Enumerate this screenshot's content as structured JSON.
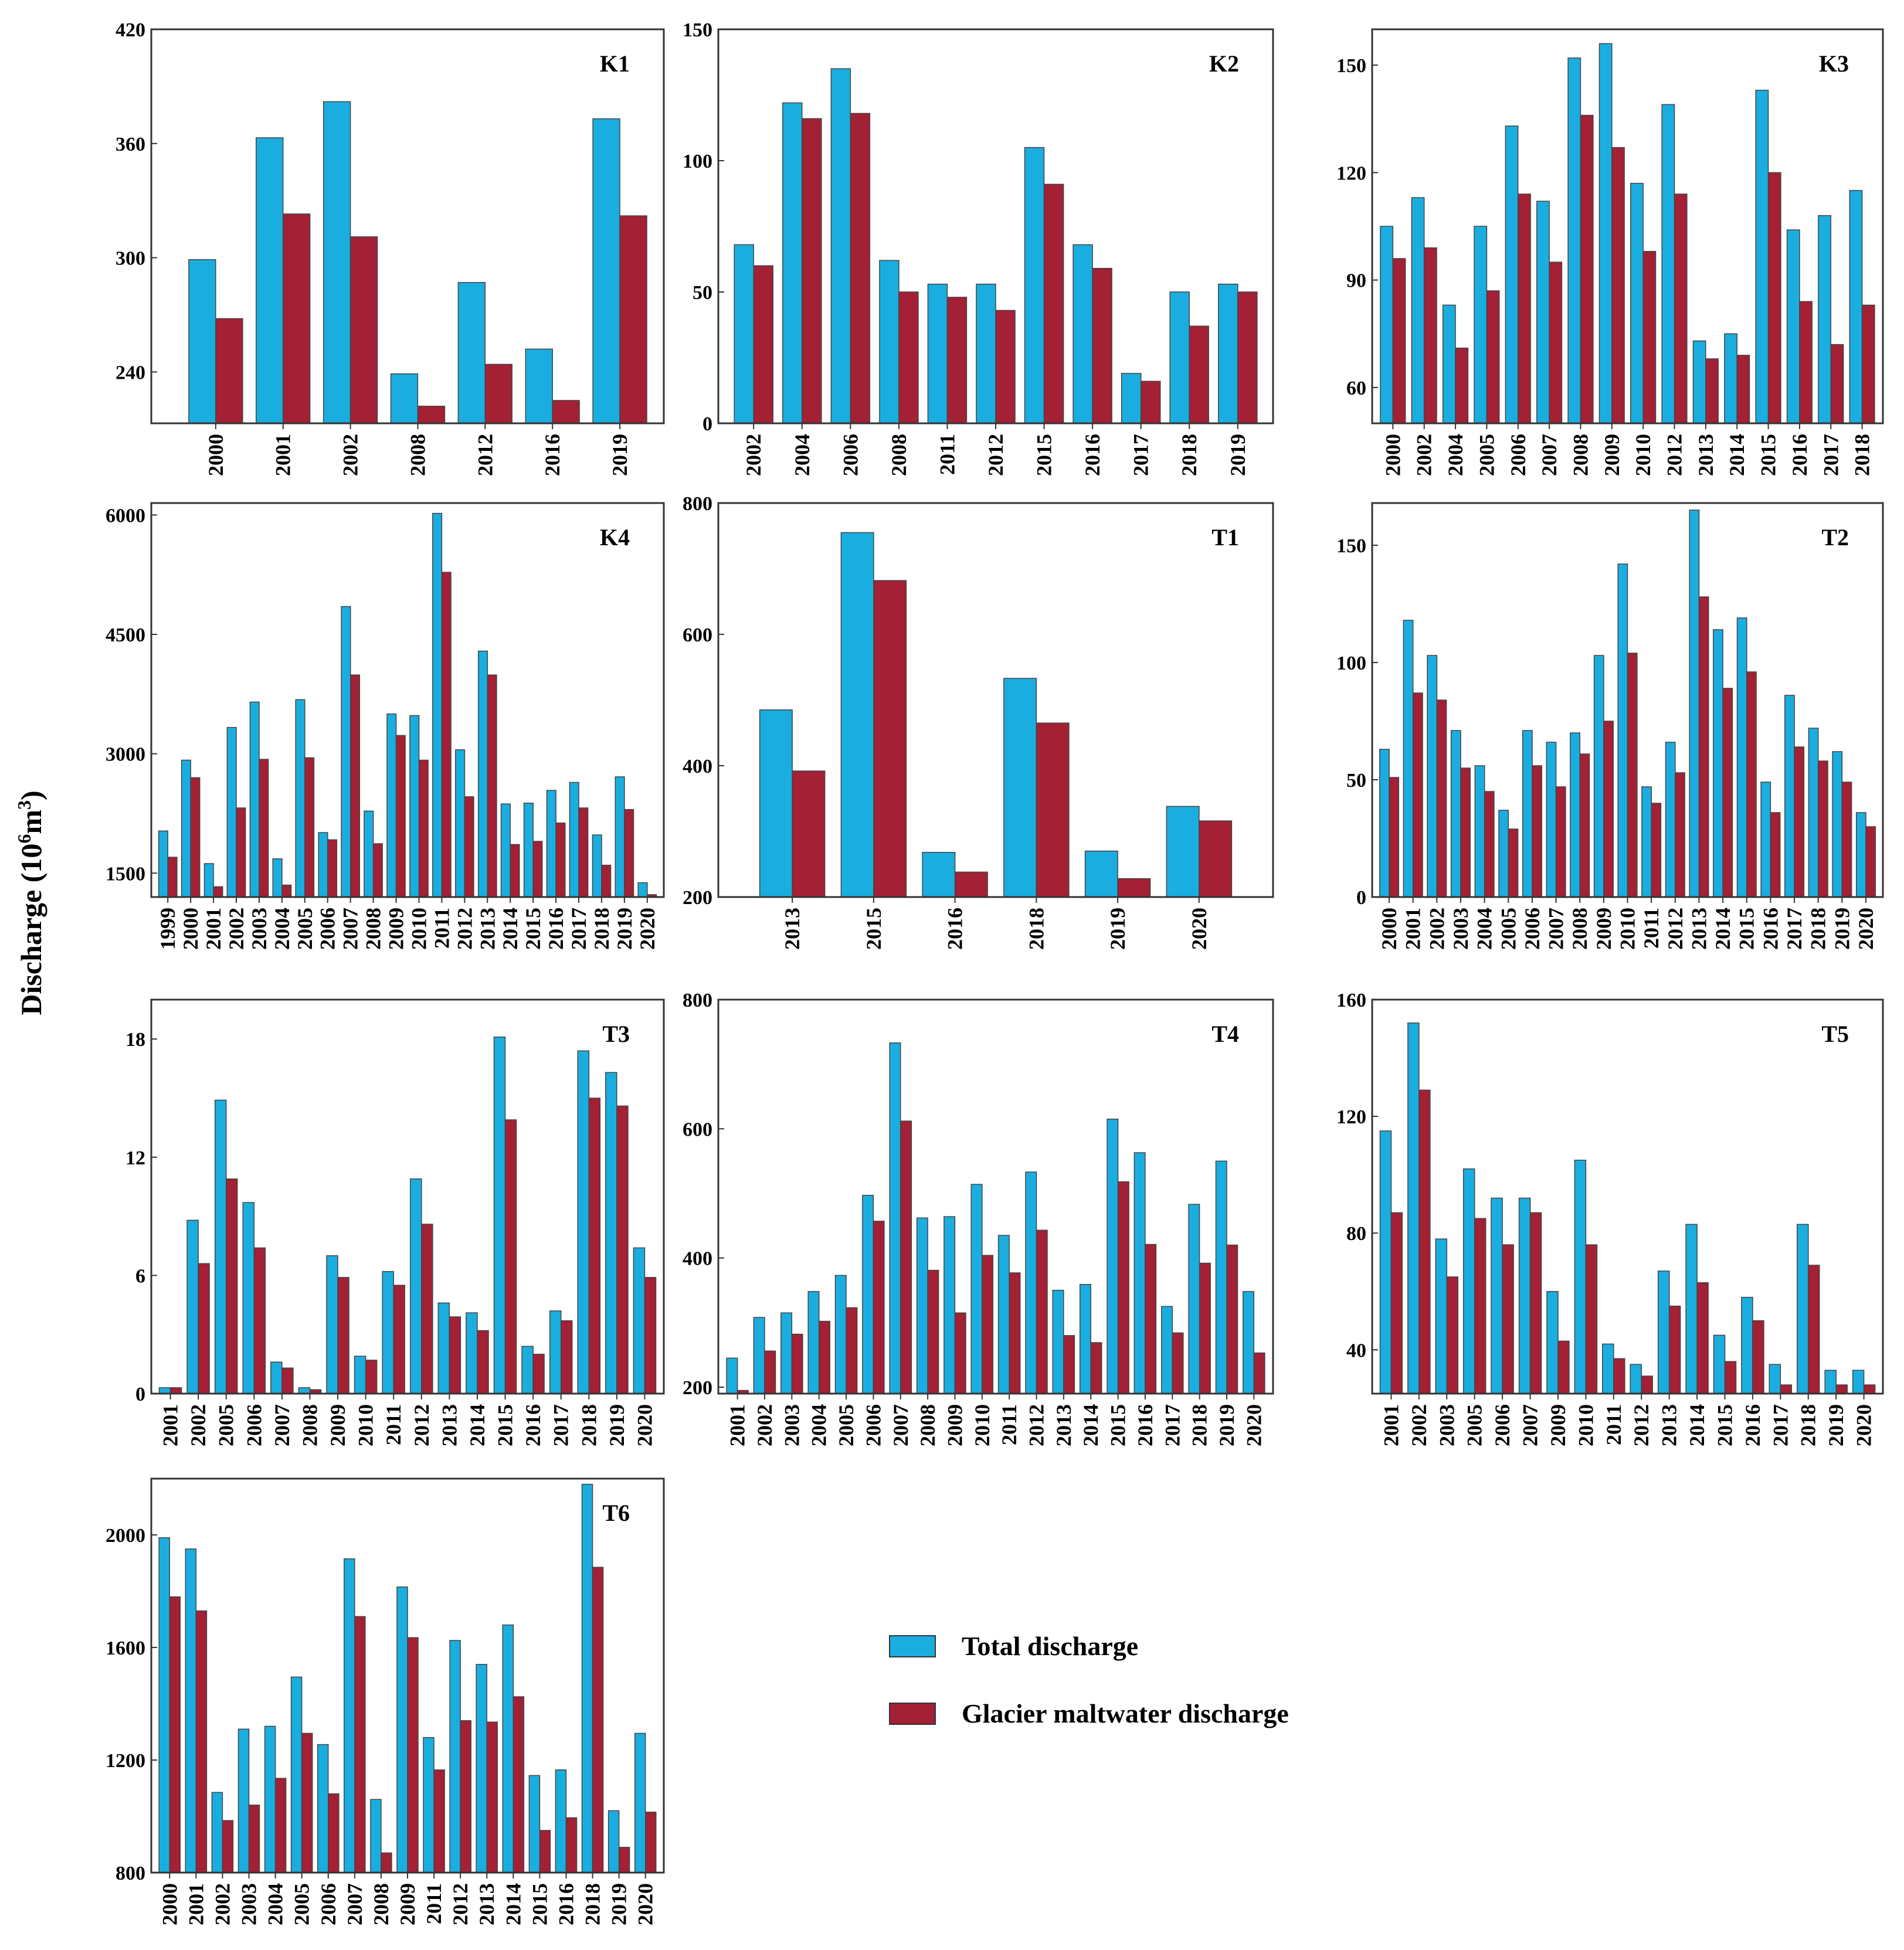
{
  "figure": {
    "ylabel": "Discharge (10",
    "ylabel_sup": "6",
    "ylabel_unit": "m",
    "ylabel_sup2": "3",
    "ylabel_end": ")"
  },
  "legend": {
    "items": [
      {
        "label": "Total discharge",
        "color": "#1aaee0"
      },
      {
        "label": "Glacier maltwater discharge",
        "color": "#a32035"
      }
    ]
  },
  "colors": {
    "total": "#1aaee0",
    "glacier": "#a32035"
  },
  "chart_data": [
    {
      "type": "bar",
      "title": "K1",
      "ylim": [
        213,
        420
      ],
      "yticks": [
        240,
        300,
        360,
        420
      ],
      "categories": [
        "2000",
        "2001",
        "2002",
        "2008",
        "2012",
        "2016",
        "2019"
      ],
      "series": [
        {
          "name": "Total discharge",
          "values": [
            299,
            363,
            382,
            239,
            287,
            252,
            373
          ]
        },
        {
          "name": "Glacier maltwater discharge",
          "values": [
            268,
            323,
            311,
            222,
            244,
            225,
            322
          ]
        }
      ]
    },
    {
      "type": "bar",
      "title": "K2",
      "ylim": [
        0,
        150
      ],
      "yticks": [
        0,
        50,
        100,
        150
      ],
      "categories": [
        "2002",
        "2004",
        "2006",
        "2008",
        "2011",
        "2012",
        "2015",
        "2016",
        "2017",
        "2018",
        "2019"
      ],
      "series": [
        {
          "name": "Total discharge",
          "values": [
            68,
            122,
            135,
            62,
            53,
            53,
            105,
            68,
            19,
            50,
            53
          ]
        },
        {
          "name": "Glacier maltwater discharge",
          "values": [
            60,
            116,
            118,
            50,
            48,
            43,
            91,
            59,
            16,
            37,
            50
          ]
        }
      ]
    },
    {
      "type": "bar",
      "title": "K3",
      "ylim": [
        50,
        160
      ],
      "yticks": [
        60,
        90,
        120,
        150
      ],
      "categories": [
        "2000",
        "2002",
        "2004",
        "2005",
        "2006",
        "2007",
        "2008",
        "2009",
        "2010",
        "2012",
        "2013",
        "2014",
        "2015",
        "2016",
        "2017",
        "2018"
      ],
      "series": [
        {
          "name": "Total discharge",
          "values": [
            105,
            113,
            83,
            105,
            133,
            112,
            152,
            156,
            117,
            139,
            73,
            75,
            143,
            104,
            108,
            115
          ]
        },
        {
          "name": "Glacier maltwater discharge",
          "values": [
            96,
            99,
            71,
            87,
            114,
            95,
            136,
            127,
            98,
            114,
            68,
            69,
            120,
            84,
            72,
            83
          ]
        }
      ]
    },
    {
      "type": "bar",
      "title": "K4",
      "ylim": [
        1200,
        6150
      ],
      "yticks": [
        1500,
        3000,
        4500,
        6000
      ],
      "categories": [
        "1999",
        "2000",
        "2001",
        "2002",
        "2003",
        "2004",
        "2005",
        "2006",
        "2007",
        "2008",
        "2009",
        "2010",
        "2011",
        "2012",
        "2013",
        "2014",
        "2015",
        "2016",
        "2017",
        "2018",
        "2019",
        "2020"
      ],
      "series": [
        {
          "name": "Total discharge",
          "values": [
            2030,
            2920,
            1620,
            3330,
            3650,
            1680,
            3680,
            2010,
            4850,
            2280,
            3500,
            3480,
            6020,
            3050,
            4290,
            2370,
            2380,
            2540,
            2640,
            1980,
            2710,
            1380
          ]
        },
        {
          "name": "Glacier maltwater discharge",
          "values": [
            1700,
            2700,
            1330,
            2320,
            2930,
            1350,
            2950,
            1920,
            3990,
            1870,
            3230,
            2920,
            5280,
            2460,
            3990,
            1860,
            1900,
            2130,
            2320,
            1600,
            2300,
            1230
          ]
        }
      ]
    },
    {
      "type": "bar",
      "title": "T1",
      "ylim": [
        200,
        800
      ],
      "yticks": [
        200,
        400,
        600,
        800
      ],
      "categories": [
        "2013",
        "2015",
        "2016",
        "2018",
        "2019",
        "2020"
      ],
      "series": [
        {
          "name": "Total discharge",
          "values": [
            485,
            755,
            268,
            533,
            270,
            338
          ]
        },
        {
          "name": "Glacier maltwater discharge",
          "values": [
            392,
            682,
            238,
            465,
            228,
            316
          ]
        }
      ]
    },
    {
      "type": "bar",
      "title": "T2",
      "ylim": [
        0,
        168
      ],
      "yticks": [
        0,
        50,
        100,
        150
      ],
      "categories": [
        "2000",
        "2001",
        "2002",
        "2003",
        "2004",
        "2005",
        "2006",
        "2007",
        "2008",
        "2009",
        "2010",
        "2011",
        "2012",
        "2013",
        "2014",
        "2015",
        "2016",
        "2017",
        "2018",
        "2019",
        "2020"
      ],
      "series": [
        {
          "name": "Total discharge",
          "values": [
            63,
            118,
            103,
            71,
            56,
            37,
            71,
            66,
            70,
            103,
            142,
            47,
            66,
            165,
            114,
            119,
            49,
            86,
            72,
            62,
            36
          ]
        },
        {
          "name": "Glacier maltwater discharge",
          "values": [
            51,
            87,
            84,
            55,
            45,
            29,
            56,
            47,
            61,
            75,
            104,
            40,
            53,
            128,
            89,
            96,
            36,
            64,
            58,
            49,
            30
          ]
        }
      ]
    },
    {
      "type": "bar",
      "title": "T3",
      "ylim": [
        0,
        20
      ],
      "yticks": [
        0,
        6,
        12,
        18
      ],
      "categories": [
        "2001",
        "2002",
        "2005",
        "2006",
        "2007",
        "2008",
        "2009",
        "2010",
        "2011",
        "2012",
        "2013",
        "2014",
        "2015",
        "2016",
        "2017",
        "2018",
        "2019",
        "2020"
      ],
      "series": [
        {
          "name": "Total discharge",
          "values": [
            0.3,
            8.8,
            14.9,
            9.7,
            1.6,
            0.3,
            7.0,
            1.9,
            6.2,
            10.9,
            4.6,
            4.1,
            18.1,
            2.4,
            4.2,
            17.4,
            16.3,
            7.4
          ]
        },
        {
          "name": "Glacier maltwater discharge",
          "values": [
            0.3,
            6.6,
            10.9,
            7.4,
            1.3,
            0.2,
            5.9,
            1.7,
            5.5,
            8.6,
            3.9,
            3.2,
            13.9,
            2.0,
            3.7,
            15.0,
            14.6,
            5.9
          ]
        }
      ]
    },
    {
      "type": "bar",
      "title": "T4",
      "ylim": [
        190,
        800
      ],
      "yticks": [
        200,
        400,
        600,
        800
      ],
      "categories": [
        "2001",
        "2002",
        "2003",
        "2004",
        "2005",
        "2006",
        "2007",
        "2008",
        "2009",
        "2010",
        "2011",
        "2012",
        "2013",
        "2014",
        "2015",
        "2016",
        "2017",
        "2018",
        "2019",
        "2020"
      ],
      "series": [
        {
          "name": "Total discharge",
          "values": [
            245,
            308,
            315,
            348,
            373,
            497,
            733,
            462,
            464,
            514,
            435,
            533,
            350,
            359,
            615,
            563,
            325,
            483,
            550,
            348
          ]
        },
        {
          "name": "Glacier maltwater discharge",
          "values": [
            195,
            256,
            282,
            302,
            323,
            457,
            612,
            381,
            315,
            404,
            377,
            443,
            280,
            269,
            518,
            421,
            284,
            392,
            420,
            253
          ]
        }
      ]
    },
    {
      "type": "bar",
      "title": "T5",
      "ylim": [
        25,
        160
      ],
      "yticks": [
        40,
        80,
        120,
        160
      ],
      "categories": [
        "2001",
        "2002",
        "2003",
        "2005",
        "2006",
        "2007",
        "2009",
        "2010",
        "2011",
        "2012",
        "2013",
        "2014",
        "2015",
        "2016",
        "2017",
        "2018",
        "2019",
        "2020"
      ],
      "series": [
        {
          "name": "Total discharge",
          "values": [
            115,
            152,
            78,
            102,
            92,
            92,
            60,
            105,
            42,
            35,
            67,
            83,
            45,
            58,
            35,
            83,
            33,
            33
          ]
        },
        {
          "name": "Glacier maltwater discharge",
          "values": [
            87,
            129,
            65,
            85,
            76,
            87,
            43,
            76,
            37,
            31,
            55,
            63,
            36,
            50,
            28,
            69,
            28,
            28
          ]
        }
      ]
    },
    {
      "type": "bar",
      "title": "T6",
      "ylim": [
        800,
        2200
      ],
      "yticks": [
        800,
        1200,
        1600,
        2000
      ],
      "categories": [
        "2000",
        "2001",
        "2002",
        "2003",
        "2004",
        "2005",
        "2006",
        "2007",
        "2008",
        "2009",
        "2011",
        "2012",
        "2013",
        "2014",
        "2015",
        "2016",
        "2018",
        "2019",
        "2020"
      ],
      "series": [
        {
          "name": "Total discharge",
          "values": [
            1990,
            1950,
            1085,
            1310,
            1320,
            1495,
            1255,
            1915,
            1060,
            1815,
            1280,
            1625,
            1540,
            1680,
            1145,
            1165,
            2180,
            1020,
            1295
          ]
        },
        {
          "name": "Glacier maltwater discharge",
          "values": [
            1780,
            1730,
            985,
            1040,
            1135,
            1295,
            1080,
            1710,
            870,
            1635,
            1165,
            1340,
            1335,
            1425,
            950,
            995,
            1885,
            890,
            1015
          ]
        }
      ]
    }
  ]
}
